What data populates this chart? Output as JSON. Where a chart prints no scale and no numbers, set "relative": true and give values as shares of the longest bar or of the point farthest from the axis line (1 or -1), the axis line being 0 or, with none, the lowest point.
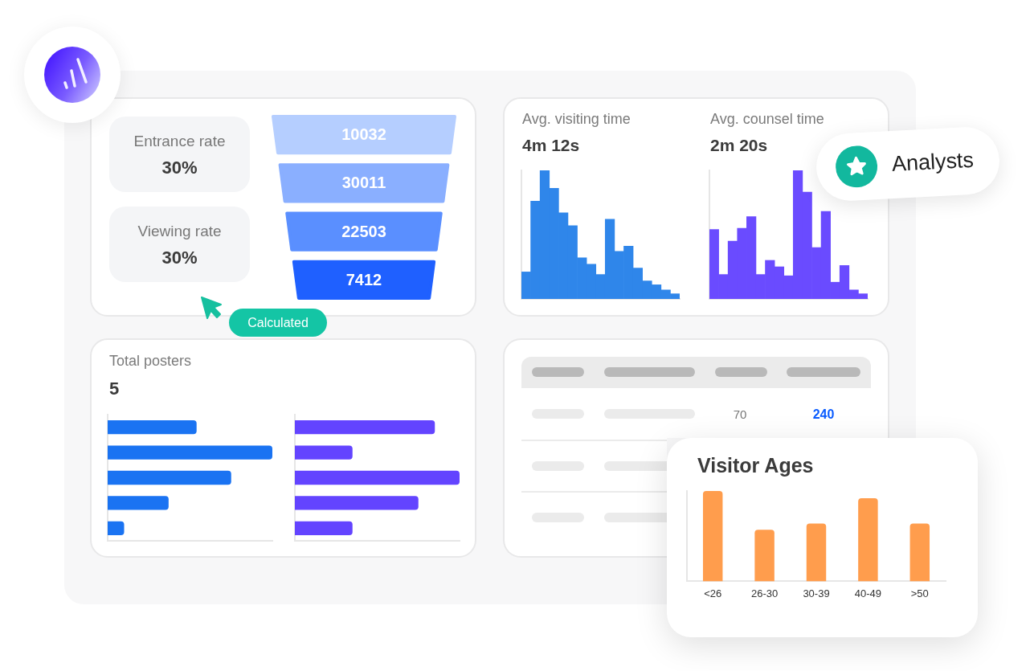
{
  "chart_data": [
    {
      "type": "other",
      "annotations": [
        "Entrance rate",
        "30%",
        "Viewing rate",
        "30%"
      ]
    },
    {
      "type": "other",
      "categories": [
        null,
        null,
        null,
        null
      ],
      "values": [
        10032,
        30011,
        22503,
        7412
      ],
      "colors": [
        "#b5ceff",
        "#8aafff",
        "#5a8fff",
        "#1f60ff"
      ],
      "data_labels": true,
      "annotations": [
        "Calculated"
      ]
    },
    {
      "type": "bar",
      "title": "Avg. visiting time",
      "subtitle": "4m 12s",
      "categories": [
        null,
        null,
        null,
        null,
        null,
        null,
        null,
        null,
        null,
        null,
        null,
        null,
        null,
        null,
        null,
        null,
        null
      ],
      "values": [
        0.21,
        0.76,
        1,
        0.86,
        0.67,
        0.57,
        0.32,
        0.27,
        0.19,
        0.62,
        0.37,
        0.41,
        0.24,
        0.14,
        0.11,
        0.07,
        0.04
      ],
      "color": "#2f86ea",
      "relative": true
    },
    {
      "type": "bar",
      "title": "Avg. counsel time",
      "subtitle": "2m 20s",
      "categories": [
        null,
        null,
        null,
        null,
        null,
        null,
        null,
        null,
        null,
        null,
        null,
        null,
        null,
        null,
        null,
        null,
        null
      ],
      "values": [
        0.54,
        0.19,
        0.45,
        0.55,
        0.64,
        0.19,
        0.3,
        0.25,
        0.18,
        1,
        0.83,
        0.4,
        0.68,
        0.13,
        0.26,
        0.07,
        0.04
      ],
      "color": "#6a4bff",
      "relative": true,
      "annotations": [
        "Analysts"
      ]
    },
    {
      "type": "bar",
      "orientation": "horizontal",
      "title": "Total posters",
      "subtitle": "5",
      "categories": [
        null,
        null,
        null,
        null,
        null
      ],
      "values": [
        0.54,
        1,
        0.75,
        0.37,
        0.1
      ],
      "color": "#1a73f2",
      "relative": true
    },
    {
      "type": "bar",
      "orientation": "horizontal",
      "categories": [
        null,
        null,
        null,
        null,
        null
      ],
      "values": [
        0.85,
        0.35,
        1,
        0.75,
        0.35
      ],
      "color": "#6344ff",
      "relative": true
    },
    {
      "type": "other",
      "annotations": [
        "70",
        "240"
      ]
    },
    {
      "type": "bar",
      "title": "Visitor Ages",
      "categories": [
        "<26",
        "26-30",
        "30-39",
        "40-49",
        ">50"
      ],
      "values": [
        1,
        0.57,
        0.64,
        0.92,
        0.64
      ],
      "color": "#ff9d4d",
      "relative": true
    }
  ]
}
